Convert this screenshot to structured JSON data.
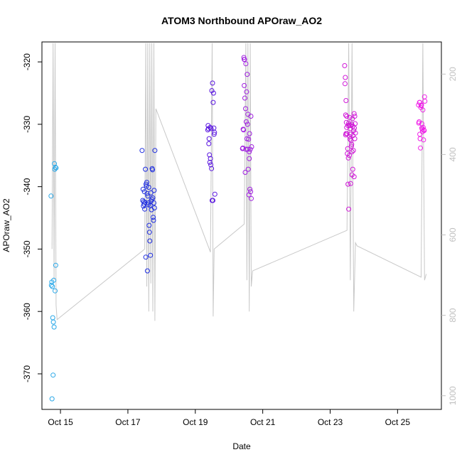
{
  "chart_data": {
    "type": "scatter",
    "title": "ATOM3 Northbound APOraw_AO2",
    "xlabel": "Date",
    "ylabel": "APOraw_AO2",
    "x_ticks": [
      "Oct 15",
      "Oct 17",
      "Oct 19",
      "Oct 21",
      "Oct 23",
      "Oct 25"
    ],
    "x_tick_days": [
      15,
      17,
      19,
      21,
      23,
      25
    ],
    "xlim": [
      14.45,
      26.3
    ],
    "ylim": [
      -375.7,
      -316.8
    ],
    "y_ticks": [
      -320,
      -330,
      -340,
      -350,
      -360,
      -370
    ],
    "secondary_axis": {
      "ticks": [
        200,
        400,
        600,
        800,
        1000
      ],
      "ylim": [
        1034,
        120
      ],
      "color": "#c0c0c0"
    },
    "grid": false,
    "colors": {
      "profile_line": "#c8c8c8",
      "frame": "#000000"
    },
    "series": [
      {
        "color": "#2aa8e8",
        "x": [
          14.72,
          14.74,
          14.76,
          14.77,
          14.79,
          14.8,
          14.82,
          14.83,
          14.84,
          14.86,
          14.87,
          14.78,
          14.75,
          14.81,
          14.73,
          14.85
        ],
        "y": [
          -341.5,
          -355.3,
          -356.0,
          -361.0,
          -361.7,
          -355.0,
          -336.3,
          -337.2,
          -356.7,
          -352.6,
          -337.0,
          -370.2,
          -374.0,
          -362.5,
          -355.8,
          -336.9
        ]
      },
      {
        "color": "#1f2ee0",
        "x": [
          17.42,
          17.45,
          17.47,
          17.5,
          17.52,
          17.55,
          17.57,
          17.6,
          17.62,
          17.65,
          17.67,
          17.7,
          17.72,
          17.75,
          17.77,
          17.8,
          17.48,
          17.53,
          17.58,
          17.63,
          17.68,
          17.73,
          17.78,
          17.44,
          17.56,
          17.61,
          17.66,
          17.71,
          17.76,
          17.59,
          17.64,
          17.51,
          17.54,
          17.69,
          17.74,
          17.79,
          17.46,
          17.49
        ],
        "y": [
          -334.2,
          -340.4,
          -342.4,
          -343.6,
          -337.2,
          -339.9,
          -341.1,
          -342.9,
          -340.1,
          -348.7,
          -351.0,
          -343.7,
          -337.1,
          -344.9,
          -342.6,
          -334.2,
          -342.8,
          -351.3,
          -353.5,
          -346.2,
          -341.0,
          -337.3,
          -340.6,
          -342.2,
          -339.3,
          -342.6,
          -343.0,
          -342.0,
          -345.4,
          -341.5,
          -347.3,
          -342.5,
          -339.6,
          -342.3,
          -341.8,
          -343.4,
          -343.1,
          -340.8
        ]
      },
      {
        "color": "#5a16e0",
        "x": [
          19.38,
          19.4,
          19.42,
          19.44,
          19.46,
          19.48,
          19.5,
          19.52,
          19.54,
          19.56,
          19.58,
          19.39,
          19.41,
          19.43,
          19.45,
          19.47,
          19.49,
          19.51,
          19.53,
          19.55,
          19.57,
          19.37
        ],
        "y": [
          -330.2,
          -333.1,
          -334.9,
          -330.5,
          -336.5,
          -337.1,
          -342.2,
          -342.2,
          -325.0,
          -331.6,
          -341.2,
          -330.7,
          -332.3,
          -336.1,
          -335.5,
          -330.7,
          -324.6,
          -323.4,
          -326.5,
          -330.6,
          -331.3,
          -330.9
        ]
      },
      {
        "color": "#a020e0",
        "x": [
          20.4,
          20.42,
          20.44,
          20.46,
          20.48,
          20.5,
          20.52,
          20.54,
          20.56,
          20.58,
          20.6,
          20.62,
          20.64,
          20.66,
          20.41,
          20.43,
          20.45,
          20.47,
          20.49,
          20.51,
          20.53,
          20.55,
          20.57,
          20.59,
          20.61,
          20.63,
          20.65,
          20.67,
          20.45,
          20.5,
          20.55,
          20.6
        ],
        "y": [
          -333.9,
          -330.8,
          -319.3,
          -319.6,
          -337.7,
          -334.0,
          -324.8,
          -322.0,
          -328.4,
          -332.4,
          -335.5,
          -340.4,
          -340.8,
          -341.9,
          -333.8,
          -330.9,
          -323.8,
          -325.8,
          -327.5,
          -329.6,
          -332.3,
          -334.0,
          -337.2,
          -341.3,
          -331.5,
          -334.0,
          -328.7,
          -333.6,
          -319.6,
          -320.3,
          -330.0,
          -334.4
        ]
      },
      {
        "color": "#d018d8",
        "x": [
          23.43,
          23.45,
          23.47,
          23.49,
          23.51,
          23.53,
          23.55,
          23.57,
          23.59,
          23.61,
          23.63,
          23.65,
          23.67,
          23.69,
          23.71,
          23.73,
          23.75,
          23.44,
          23.46,
          23.48,
          23.5,
          23.52,
          23.54,
          23.56,
          23.58,
          23.6,
          23.62,
          23.64,
          23.66,
          23.68,
          23.7,
          23.72,
          23.74,
          23.47,
          23.53,
          23.59,
          23.65,
          23.71,
          23.49,
          23.55,
          23.61,
          23.67,
          23.73,
          23.46,
          23.58,
          23.64
        ],
        "y": [
          -320.6,
          -322.5,
          -326.2,
          -330.5,
          -334.7,
          -339.6,
          -343.6,
          -335.0,
          -330.7,
          -339.5,
          -333.5,
          -338.1,
          -337.2,
          -334.2,
          -328.3,
          -332.3,
          -331.4,
          -323.5,
          -328.5,
          -329.7,
          -331.5,
          -333.9,
          -335.4,
          -330.1,
          -328.9,
          -330.2,
          -332.6,
          -333.2,
          -329.1,
          -331.8,
          -331.0,
          -330.6,
          -329.9,
          -331.5,
          -330.2,
          -332.4,
          -334.4,
          -338.4,
          -328.7,
          -329.8,
          -331.6,
          -330.3,
          -328.7,
          -331.7,
          -332.0,
          -330.0
        ]
      },
      {
        "color": "#f020e8",
        "x": [
          25.62,
          25.64,
          25.66,
          25.68,
          25.7,
          25.72,
          25.74,
          25.76,
          25.78,
          25.8,
          25.63,
          25.65,
          25.67,
          25.69,
          25.71,
          25.73,
          25.75,
          25.77,
          25.79,
          25.81,
          25.66,
          25.72
        ],
        "y": [
          -326.9,
          -329.6,
          -331.6,
          -333.8,
          -327.0,
          -329.9,
          -331.2,
          -330.5,
          -330.9,
          -325.6,
          -329.8,
          -326.5,
          -332.3,
          -327.3,
          -326.9,
          -330.8,
          -327.7,
          -332.5,
          -331.0,
          -326.3,
          -326.5,
          -330.6
        ]
      }
    ],
    "profile_line": {
      "x": [
        14.75,
        14.78,
        14.81,
        14.84,
        14.87,
        14.9,
        17.5,
        17.53,
        17.56,
        17.59,
        17.62,
        17.65,
        17.68,
        17.71,
        17.74,
        17.77,
        17.8,
        17.83,
        19.45,
        19.5,
        19.53,
        19.56,
        20.45,
        20.5,
        20.53,
        20.56,
        20.6,
        20.63,
        20.66,
        20.7,
        23.5,
        23.55,
        23.6,
        23.65,
        23.7,
        23.75,
        23.8,
        25.7,
        25.75,
        25.8,
        25.85
      ],
      "y": [
        -350.0,
        -317.0,
        -355.0,
        -317.0,
        -359.0,
        -361.3,
        -350.0,
        -317.0,
        -356.0,
        -317.0,
        -360.0,
        -317.0,
        -355.5,
        -317.0,
        -360.0,
        -317.0,
        -361.5,
        -327.5,
        -350.5,
        -317.0,
        -360.8,
        -350.0,
        -346.0,
        -317.0,
        -355.0,
        -317.0,
        -360.0,
        -317.0,
        -356.0,
        -353.5,
        -347.0,
        -317.0,
        -355.0,
        -317.0,
        -360.0,
        -349.0,
        -349.5,
        -354.5,
        -317.0,
        -355.0,
        -354.0
      ]
    }
  }
}
